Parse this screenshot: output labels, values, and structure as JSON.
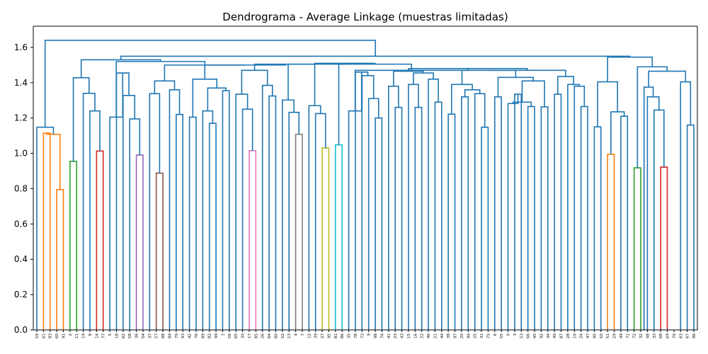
{
  "chart_data": {
    "type": "dendrogram",
    "title": "Dendrograma - Average Linkage (muestras limitadas)",
    "xlabel": "",
    "ylabel": "",
    "ylim": [
      0,
      1.72
    ],
    "yticks": [
      "0.0",
      "0.2",
      "0.4",
      "0.6",
      "0.8",
      "1.0",
      "1.2",
      "1.4",
      "1.6"
    ],
    "grid": false,
    "leaves": [
      "59",
      "61",
      "83",
      "60",
      "91",
      "2",
      "11",
      "19",
      "8",
      "14",
      "77",
      "5",
      "18",
      "62",
      "58",
      "36",
      "54",
      "37",
      "57",
      "88",
      "84",
      "79",
      "93",
      "42",
      "76",
      "89",
      "82",
      "99",
      "1",
      "56",
      "65",
      "30",
      "17",
      "85",
      "26",
      "64",
      "80",
      "52",
      "13",
      "4",
      "7",
      "12",
      "39",
      "27",
      "95",
      "81",
      "86",
      "35",
      "78",
      "73",
      "9",
      "98",
      "74",
      "41",
      "23",
      "43",
      "15",
      "16",
      "22",
      "46",
      "21",
      "44",
      "38",
      "97",
      "20",
      "94",
      "25",
      "31",
      "75",
      "6",
      "55",
      "0",
      "3",
      "53",
      "66",
      "45",
      "92",
      "34",
      "40",
      "87",
      "28",
      "10",
      "24",
      "47",
      "90",
      "50",
      "51",
      "29",
      "49",
      "71",
      "72",
      "32",
      "48",
      "33",
      "68",
      "69",
      "70",
      "63",
      "67",
      "96"
    ],
    "colors": {
      "above_threshold": "#1f77b4",
      "c1": "#ff7f0e",
      "c2": "#2ca02c",
      "c3": "#d62728",
      "c4": "#9467bd",
      "c5": "#8c564b",
      "c6": "#e377c2",
      "c7": "#7f7f7f",
      "c8": "#bcbd22",
      "c9": "#17becf"
    },
    "links": [
      {
        "l": 1,
        "r": 2,
        "h": 1.115,
        "c": "c1"
      },
      {
        "l": 3,
        "r": 4,
        "h": 0.795,
        "c": "c1"
      },
      {
        "l": "n0",
        "r": "n1",
        "h": 1.108,
        "c": "c1",
        "id": "n2"
      },
      {
        "l": 0,
        "r": "n2",
        "h": 1.148,
        "c": "above_threshold",
        "id": "n3"
      },
      {
        "l": 5,
        "r": 6,
        "h": 0.955,
        "c": "c2",
        "id": "a1"
      },
      {
        "l": 9,
        "r": 10,
        "h": 1.013,
        "c": "c3",
        "id": "a2"
      },
      {
        "l": 8,
        "r": "a2",
        "h": 1.24,
        "c": "above_threshold",
        "id": "a3"
      },
      {
        "l": 7,
        "r": "a3",
        "h": 1.34,
        "c": "above_threshold",
        "id": "a4"
      },
      {
        "l": "a1",
        "r": "a4",
        "h": 1.428,
        "c": "above_threshold",
        "id": "a5"
      },
      {
        "l": 15,
        "r": 16,
        "h": 0.99,
        "c": "c4",
        "id": "b1"
      },
      {
        "l": 14,
        "r": "b1",
        "h": 1.195,
        "c": "above_threshold",
        "id": "b2"
      },
      {
        "l": 13,
        "r": "b2",
        "h": 1.328,
        "c": "above_threshold",
        "id": "b3"
      },
      {
        "l": 12,
        "r": "b3",
        "h": 1.455,
        "c": "above_threshold",
        "id": "b4"
      },
      {
        "l": 11,
        "r": "b4",
        "h": 1.205,
        "c": "above_threshold",
        "id": "b5"
      },
      {
        "l": 18,
        "r": 19,
        "h": 0.888,
        "c": "c5",
        "id": "d1"
      },
      {
        "l": 17,
        "r": "d1",
        "h": 1.338,
        "c": "above_threshold",
        "id": "d2"
      },
      {
        "l": 21,
        "r": 22,
        "h": 1.22,
        "c": "above_threshold",
        "id": "d3"
      },
      {
        "l": 20,
        "r": "d3",
        "h": 1.36,
        "c": "above_threshold",
        "id": "d4"
      },
      {
        "l": "d2",
        "r": "d4",
        "h": 1.41,
        "c": "above_threshold",
        "id": "d5"
      },
      {
        "l": 23,
        "r": 24,
        "h": 1.205,
        "c": "above_threshold",
        "id": "e1"
      },
      {
        "l": 26,
        "r": 27,
        "h": 1.17,
        "c": "above_threshold",
        "id": "e2"
      },
      {
        "l": 25,
        "r": "e2",
        "h": 1.24,
        "c": "above_threshold",
        "id": "e3"
      },
      {
        "l": 28,
        "r": 29,
        "h": 1.355,
        "c": "above_threshold",
        "id": "e4"
      },
      {
        "l": "e3",
        "r": "e4",
        "h": 1.37,
        "c": "above_threshold",
        "id": "e5"
      },
      {
        "l": "e1",
        "r": "e5",
        "h": 1.42,
        "c": "above_threshold",
        "id": "e6"
      },
      {
        "l": 32,
        "r": 33,
        "h": 1.015,
        "c": "c6",
        "id": "f1"
      },
      {
        "l": 31,
        "r": "f1",
        "h": 1.25,
        "c": "above_threshold",
        "id": "f2"
      },
      {
        "l": 30,
        "r": "f2",
        "h": 1.335,
        "c": "above_threshold",
        "id": "f3"
      },
      {
        "l": 35,
        "r": 36,
        "h": 1.325,
        "c": "above_threshold",
        "id": "f4"
      },
      {
        "l": 34,
        "r": "f4",
        "h": 1.385,
        "c": "above_threshold",
        "id": "f5"
      },
      {
        "l": "f3",
        "r": "f5",
        "h": 1.47,
        "c": "above_threshold",
        "id": "f6"
      },
      {
        "l": 39,
        "r": 40,
        "h": 1.108,
        "c": "c7",
        "id": "g1"
      },
      {
        "l": 38,
        "r": "g1",
        "h": 1.232,
        "c": "above_threshold",
        "id": "g2"
      },
      {
        "l": 37,
        "r": "g2",
        "h": 1.302,
        "c": "above_threshold",
        "id": "g3"
      },
      {
        "l": 43,
        "r": 44,
        "h": 1.03,
        "c": "c8",
        "id": "h1"
      },
      {
        "l": 42,
        "r": "h1",
        "h": 1.225,
        "c": "above_threshold",
        "id": "h2"
      },
      {
        "l": 41,
        "r": "h2",
        "h": 1.27,
        "c": "above_threshold",
        "id": "h3"
      },
      {
        "l": 45,
        "r": 46,
        "h": 1.048,
        "c": "c9",
        "id": "h4"
      },
      {
        "l": 51,
        "r": 52,
        "h": 1.2,
        "c": "above_threshold",
        "id": "i1"
      },
      {
        "l": 50,
        "r": "i1",
        "h": 1.31,
        "c": "above_threshold",
        "id": "i2"
      },
      {
        "l": 49,
        "r": "i2",
        "h": 1.44,
        "c": "above_threshold",
        "id": "i3"
      },
      {
        "l": 48,
        "r": "i3",
        "h": 1.46,
        "c": "above_threshold",
        "id": "i4"
      },
      {
        "l": 47,
        "r": "i4",
        "h": 1.24,
        "c": "above_threshold",
        "id": "i5"
      },
      {
        "l": 54,
        "r": 55,
        "h": 1.26,
        "c": "above_threshold",
        "id": "j1"
      },
      {
        "l": 53,
        "r": "j1",
        "h": 1.38,
        "c": "above_threshold",
        "id": "j2"
      },
      {
        "l": 57,
        "r": 58,
        "h": 1.26,
        "c": "above_threshold",
        "id": "j3"
      },
      {
        "l": 56,
        "r": "j3",
        "h": 1.39,
        "c": "above_threshold",
        "id": "j4"
      },
      {
        "l": 60,
        "r": 61,
        "h": 1.29,
        "c": "above_threshold",
        "id": "j5"
      },
      {
        "l": 59,
        "r": "j5",
        "h": 1.42,
        "c": "above_threshold",
        "id": "j6"
      },
      {
        "l": "j4",
        "r": "j6",
        "h": 1.455,
        "c": "above_threshold",
        "id": "j7"
      },
      {
        "l": "j2",
        "r": "j7",
        "h": 1.465,
        "c": "above_threshold",
        "id": "j8"
      },
      {
        "l": 62,
        "r": 63,
        "h": 1.222,
        "c": "above_threshold",
        "id": "k1"
      },
      {
        "l": 64,
        "r": 65,
        "h": 1.32,
        "c": "above_threshold",
        "id": "k2"
      },
      {
        "l": 67,
        "r": 68,
        "h": 1.148,
        "c": "above_threshold",
        "id": "k3"
      },
      {
        "l": 66,
        "r": "k3",
        "h": 1.338,
        "c": "above_threshold",
        "id": "k4"
      },
      {
        "l": "k2",
        "r": "k4",
        "h": 1.36,
        "c": "above_threshold",
        "id": "k5"
      },
      {
        "l": "k1",
        "r": "k5",
        "h": 1.39,
        "c": "above_threshold",
        "id": "k6"
      },
      {
        "l": 69,
        "r": 70,
        "h": 1.32,
        "c": "above_threshold",
        "id": "l1"
      },
      {
        "l": 72,
        "r": 73,
        "h": 1.335,
        "c": "above_threshold",
        "id": "l2"
      },
      {
        "l": 71,
        "r": "l2",
        "h": 1.282,
        "c": "above_threshold",
        "id": "l3"
      },
      {
        "l": 74,
        "r": 75,
        "h": 1.265,
        "c": "above_threshold",
        "id": "l4"
      },
      {
        "l": "l3",
        "r": "l4",
        "h": 1.29,
        "c": "above_threshold",
        "id": "l5"
      },
      {
        "l": 76,
        "r": 77,
        "h": 1.263,
        "c": "above_threshold",
        "id": "l6"
      },
      {
        "l": "l5",
        "r": "l6",
        "h": 1.41,
        "c": "above_threshold",
        "id": "l7"
      },
      {
        "l": "l1",
        "r": "l7",
        "h": 1.43,
        "c": "above_threshold",
        "id": "l8"
      },
      {
        "l": "k6",
        "r": "l8",
        "h": 1.47,
        "c": "above_threshold",
        "id": "l9"
      },
      {
        "l": 78,
        "r": 79,
        "h": 1.335,
        "c": "above_threshold",
        "id": "m1"
      },
      {
        "l": 82,
        "r": 83,
        "h": 1.265,
        "c": "above_threshold",
        "id": "m2"
      },
      {
        "l": 81,
        "r": "m2",
        "h": 1.38,
        "c": "above_threshold",
        "id": "m3"
      },
      {
        "l": 80,
        "r": "m3",
        "h": 1.39,
        "c": "above_threshold",
        "id": "m4"
      },
      {
        "l": "m1",
        "r": "m4",
        "h": 1.435,
        "c": "above_threshold",
        "id": "m5"
      },
      {
        "l": "l9",
        "r": "m5",
        "h": 1.47,
        "c": "above_threshold",
        "id": "m6"
      },
      {
        "l": "j8",
        "r": "m6",
        "h": 1.48,
        "c": "above_threshold",
        "id": "m7"
      },
      {
        "l": "i5",
        "r": "m7",
        "h": 1.47,
        "c": "above_threshold",
        "id": "m8"
      },
      {
        "l": "h4",
        "r": "m8",
        "h": 1.505,
        "c": "above_threshold",
        "id": "m9"
      },
      {
        "l": "h3",
        "r": "m9",
        "h": 1.51,
        "c": "above_threshold",
        "id": "m10"
      },
      {
        "l": "g3",
        "r": "m10",
        "h": 1.505,
        "c": "above_threshold",
        "id": "p1"
      },
      {
        "l": "f6",
        "r": "p1",
        "h": 1.505,
        "c": "above_threshold",
        "id": "p2"
      },
      {
        "l": "e6",
        "r": "p2",
        "h": 1.5,
        "c": "above_threshold",
        "id": "p3"
      },
      {
        "l": "d5",
        "r": "p3",
        "h": 1.5,
        "c": "above_threshold",
        "id": "p4"
      },
      {
        "l": 84,
        "r": 85,
        "h": 1.15,
        "c": "above_threshold",
        "id": "q1"
      },
      {
        "l": 86,
        "r": 87,
        "h": 0.995,
        "c": "c1",
        "id": "q2"
      },
      {
        "l": 88,
        "r": 89,
        "h": 1.21,
        "c": "above_threshold",
        "id": "q3"
      },
      {
        "l": "q2",
        "r": "q3",
        "h": 1.235,
        "c": "above_threshold",
        "id": "q4"
      },
      {
        "l": "q1",
        "r": "q4",
        "h": 1.405,
        "c": "above_threshold",
        "id": "q5"
      },
      {
        "l": 90,
        "r": 91,
        "h": 0.918,
        "c": "c2",
        "id": "r1"
      },
      {
        "l": 94,
        "r": 95,
        "h": 0.922,
        "c": "c3",
        "id": "r2"
      },
      {
        "l": 93,
        "r": "r2",
        "h": 1.245,
        "c": "above_threshold",
        "id": "r3"
      },
      {
        "l": 92,
        "r": "r3",
        "h": 1.32,
        "c": "above_threshold",
        "id": "r4"
      },
      {
        "l": 91.5,
        "r": "r4",
        "h": 1.375,
        "c": "above_threshold",
        "id": "r4b"
      },
      {
        "l": 98,
        "r": 99,
        "h": 1.16,
        "c": "above_threshold",
        "id": "r5"
      },
      {
        "l": 97,
        "r": "r5",
        "h": 1.405,
        "c": "above_threshold",
        "id": "r6"
      },
      {
        "l": "r4b",
        "r": "r6",
        "h": 1.465,
        "c": "above_threshold",
        "id": "r7"
      },
      {
        "l": "r1",
        "r": "r7",
        "h": 1.49,
        "c": "above_threshold",
        "id": "r8"
      },
      {
        "l": "q5",
        "r": "r8",
        "h": 1.545,
        "c": "above_threshold",
        "id": "r9"
      },
      {
        "l": "b5",
        "r": "p4",
        "h": 1.52,
        "c": "above_threshold",
        "id": "s1"
      },
      {
        "l": "a5",
        "r": "s1",
        "h": 1.53,
        "c": "above_threshold",
        "id": "s2"
      },
      {
        "l": "s2",
        "r": "r9",
        "h": 1.55,
        "c": "above_threshold",
        "id": "s3"
      },
      {
        "l": "n3",
        "r": "s3",
        "h": 1.64,
        "c": "above_threshold",
        "id": "s4"
      }
    ]
  }
}
